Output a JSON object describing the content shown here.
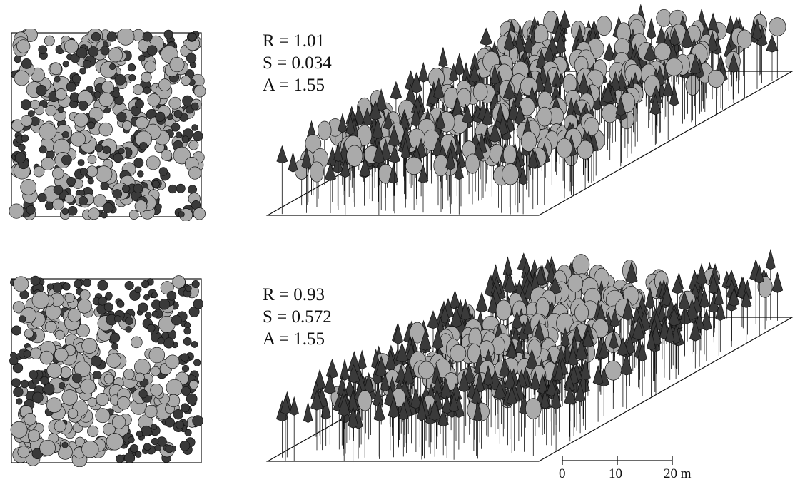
{
  "panels": [
    {
      "R": "R = 1.01",
      "S": "S = 0.034",
      "A": "A = 1.55"
    },
    {
      "R": "R = 0.93",
      "S": "S = 0.572",
      "A": "A = 1.55"
    }
  ],
  "scale": {
    "labels": [
      "0",
      "10",
      "20 m"
    ]
  },
  "colors": {
    "dark_tree": "#3a3a3a",
    "light_tree": "#aaaaaa",
    "outline": "#111111"
  }
}
